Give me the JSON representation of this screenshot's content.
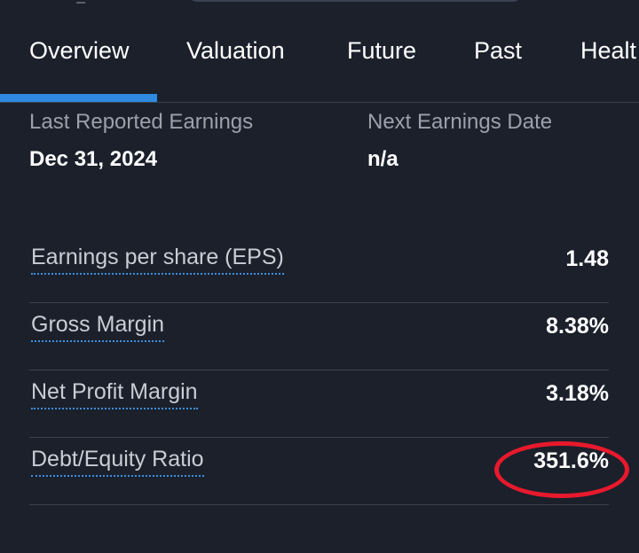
{
  "tabs": [
    {
      "label": "Overview",
      "active": true
    },
    {
      "label": "Valuation",
      "active": false
    },
    {
      "label": "Future",
      "active": false
    },
    {
      "label": "Past",
      "active": false
    },
    {
      "label": "Healt",
      "active": false
    }
  ],
  "earnings": {
    "last_reported_label": "Last Reported Earnings",
    "last_reported_value": "Dec 31, 2024",
    "next_date_label": "Next Earnings Date",
    "next_date_value": "n/a"
  },
  "metrics": [
    {
      "label": "Earnings per share (EPS)",
      "value": "1.48"
    },
    {
      "label": "Gross Margin",
      "value": "8.38%"
    },
    {
      "label": "Net Profit Margin",
      "value": "3.18%"
    },
    {
      "label": "Debt/Equity Ratio",
      "value": "351.6%",
      "highlighted": true
    }
  ],
  "colors": {
    "background": "#1b202b",
    "accent": "#2d8ae0",
    "highlight": "#e8192c"
  }
}
